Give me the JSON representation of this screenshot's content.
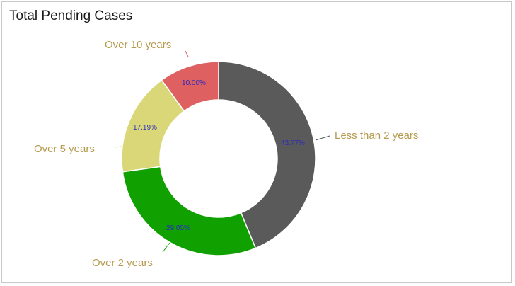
{
  "chart_data": {
    "type": "donut",
    "title": "Total Pending Cases",
    "legend": "none",
    "label_color": "#b49b4e",
    "percent_label_color": "#2b2bbf",
    "slices": [
      {
        "label": "Less than 2 years",
        "value": 43.77,
        "percent_label": "43.77%",
        "color": "#5a5a5a"
      },
      {
        "label": "Over 2 years",
        "value": 29.05,
        "percent_label": "29.05%",
        "color": "#10a000"
      },
      {
        "label": "Over 5 years",
        "value": 17.19,
        "percent_label": "17.19%",
        "color": "#d9d777"
      },
      {
        "label": "Over 10 years",
        "value": 10.0,
        "percent_label": "10.00%",
        "color": "#de6060"
      }
    ]
  }
}
